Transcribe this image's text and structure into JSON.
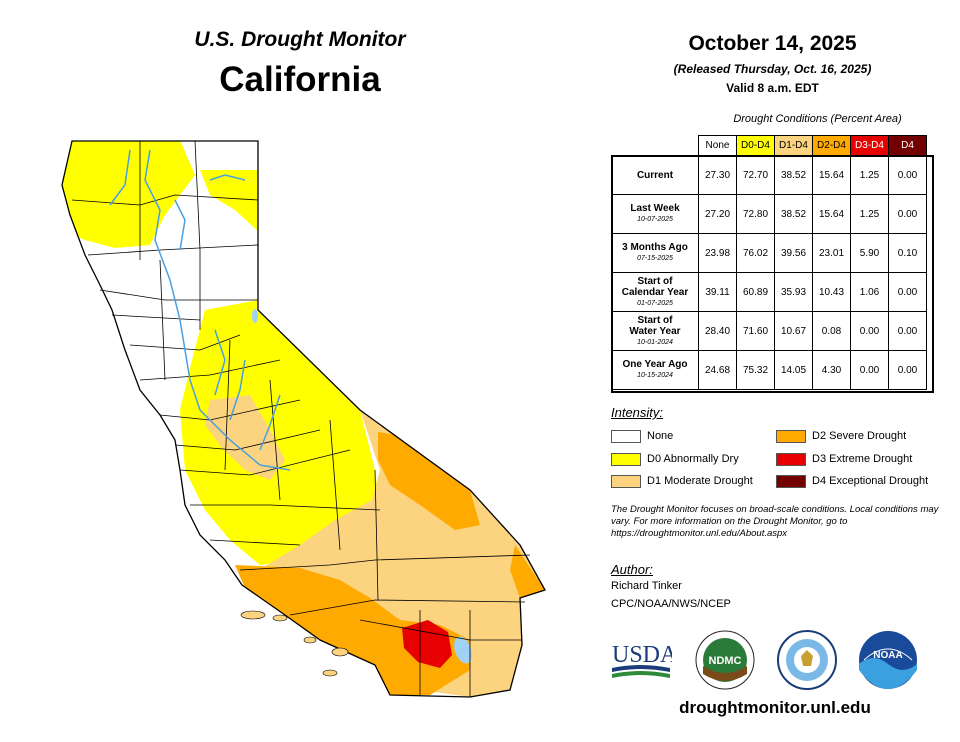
{
  "header": {
    "title": "U.S. Drought Monitor",
    "state": "California",
    "date": "October 14, 2025",
    "released": "(Released Thursday, Oct. 16, 2025)",
    "valid": "Valid 8 a.m. EDT"
  },
  "table": {
    "caption": "Drought Conditions (Percent Area)",
    "columns": [
      {
        "label": "None",
        "bg": "#ffffff",
        "fg": "#000000"
      },
      {
        "label": "D0-D4",
        "bg": "#ffff00",
        "fg": "#000000"
      },
      {
        "label": "D1-D4",
        "bg": "#fcd37f",
        "fg": "#000000"
      },
      {
        "label": "D2-D4",
        "bg": "#ffaa00",
        "fg": "#000000"
      },
      {
        "label": "D3-D4",
        "bg": "#e60000",
        "fg": "#ffffff"
      },
      {
        "label": "D4",
        "bg": "#730000",
        "fg": "#ffffff"
      }
    ],
    "rows": [
      {
        "label": "Current",
        "sub": "",
        "values": [
          "27.30",
          "72.70",
          "38.52",
          "15.64",
          "1.25",
          "0.00"
        ]
      },
      {
        "label": "Last Week",
        "sub": "10-07-2025",
        "values": [
          "27.20",
          "72.80",
          "38.52",
          "15.64",
          "1.25",
          "0.00"
        ]
      },
      {
        "label": "3 Months Ago",
        "sub": "07-15-2025",
        "values": [
          "23.98",
          "76.02",
          "39.56",
          "23.01",
          "5.90",
          "0.10"
        ]
      },
      {
        "label": "Start of Calendar Year",
        "sub": "01-07-2025",
        "values": [
          "39.11",
          "60.89",
          "35.93",
          "10.43",
          "1.06",
          "0.00"
        ]
      },
      {
        "label": "Start of Water Year",
        "sub": "10-01-2024",
        "values": [
          "28.40",
          "71.60",
          "10.67",
          "0.08",
          "0.00",
          "0.00"
        ]
      },
      {
        "label": "One Year Ago",
        "sub": "10-15-2024",
        "values": [
          "24.68",
          "75.32",
          "14.05",
          "4.30",
          "0.00",
          "0.00"
        ]
      }
    ]
  },
  "legend": {
    "title": "Intensity:",
    "items": [
      {
        "label": "None",
        "color": "#ffffff"
      },
      {
        "label": "D0 Abnormally Dry",
        "color": "#ffff00"
      },
      {
        "label": "D1 Moderate Drought",
        "color": "#fcd37f"
      },
      {
        "label": "D2 Severe Drought",
        "color": "#ffaa00"
      },
      {
        "label": "D3 Extreme Drought",
        "color": "#e60000"
      },
      {
        "label": "D4 Exceptional Drought",
        "color": "#730000"
      }
    ]
  },
  "disclaimer": "The Drought Monitor focuses on broad-scale conditions. Local conditions may vary. For more information on the Drought Monitor, go to https://droughtmonitor.unl.edu/About.aspx",
  "author": {
    "title": "Author:",
    "name": "Richard Tinker",
    "org": "CPC/NOAA/NWS/NCEP"
  },
  "logos": {
    "usda": "USDA",
    "ndmc": "NDMC",
    "noaa": "NOAA"
  },
  "footer_url": "droughtmonitor.unl.edu",
  "map_colors": {
    "none": "#ffffff",
    "d0": "#ffff00",
    "d1": "#fcd37f",
    "d2": "#ffaa00",
    "d3": "#e60000",
    "water": "#9fd2f5",
    "river": "#4a9fe0"
  }
}
